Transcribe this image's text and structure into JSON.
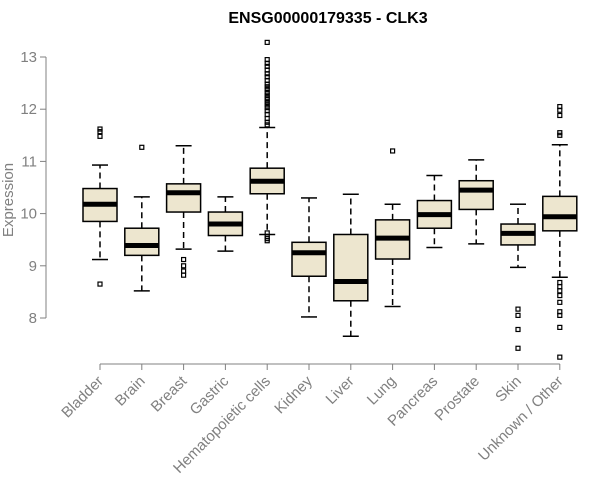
{
  "chart_data": {
    "type": "boxplot",
    "title": "ENSG00000179335 - CLK3",
    "ylabel": "Expression",
    "xlabel": "",
    "ylim": [
      7.0,
      13.4
    ],
    "yticks": [
      8,
      9,
      10,
      11,
      12,
      13
    ],
    "box_color": "#ede6cf",
    "categories": [
      "Bladder",
      "Brain",
      "Breast",
      "Gastric",
      "Hematopoietic cells",
      "Kidney",
      "Liver",
      "Lung",
      "Pancreas",
      "Prostate",
      "Skin",
      "Unknown / Other"
    ],
    "boxes": [
      {
        "name": "Bladder",
        "whisker_low": 9.12,
        "q1": 9.85,
        "median": 10.18,
        "q3": 10.48,
        "whisker_high": 10.93,
        "outliers": [
          8.65,
          11.48,
          11.57,
          11.62
        ]
      },
      {
        "name": "Brain",
        "whisker_low": 8.52,
        "q1": 9.2,
        "median": 9.39,
        "q3": 9.72,
        "whisker_high": 10.32,
        "outliers": [
          11.27
        ]
      },
      {
        "name": "Breast",
        "whisker_low": 9.32,
        "q1": 10.03,
        "median": 10.4,
        "q3": 10.57,
        "whisker_high": 11.3,
        "outliers": [
          8.82,
          8.9,
          9.0,
          9.12
        ]
      },
      {
        "name": "Gastric",
        "whisker_low": 9.28,
        "q1": 9.58,
        "median": 9.8,
        "q3": 10.03,
        "whisker_high": 10.32,
        "outliers": []
      },
      {
        "name": "Hematopoietic cells",
        "whisker_low": 9.6,
        "q1": 10.38,
        "median": 10.62,
        "q3": 10.87,
        "whisker_high": 11.65,
        "outliers": [
          9.48,
          9.52,
          9.56,
          9.63,
          11.7,
          11.75,
          11.82,
          11.9,
          11.97,
          12.03,
          12.08,
          12.13,
          12.18,
          12.22,
          12.27,
          12.32,
          12.38,
          12.43,
          12.48,
          12.55,
          12.62,
          12.68,
          12.75,
          12.82,
          12.88,
          12.95,
          13.28
        ]
      },
      {
        "name": "Kidney",
        "whisker_low": 8.02,
        "q1": 8.8,
        "median": 9.25,
        "q3": 9.45,
        "whisker_high": 10.3,
        "outliers": []
      },
      {
        "name": "Liver",
        "whisker_low": 7.65,
        "q1": 8.33,
        "median": 8.7,
        "q3": 9.6,
        "whisker_high": 10.37,
        "outliers": []
      },
      {
        "name": "Lung",
        "whisker_low": 8.22,
        "q1": 9.13,
        "median": 9.53,
        "q3": 9.88,
        "whisker_high": 10.18,
        "outliers": [
          11.2
        ]
      },
      {
        "name": "Pancreas",
        "whisker_low": 9.35,
        "q1": 9.72,
        "median": 9.98,
        "q3": 10.25,
        "whisker_high": 10.73,
        "outliers": []
      },
      {
        "name": "Prostate",
        "whisker_low": 9.42,
        "q1": 10.08,
        "median": 10.45,
        "q3": 10.63,
        "whisker_high": 11.03,
        "outliers": []
      },
      {
        "name": "Skin",
        "whisker_low": 8.97,
        "q1": 9.4,
        "median": 9.62,
        "q3": 9.8,
        "whisker_high": 10.18,
        "outliers": [
          7.42,
          7.78,
          8.05,
          8.17
        ]
      },
      {
        "name": "Unknown / Other",
        "whisker_low": 8.78,
        "q1": 9.67,
        "median": 9.94,
        "q3": 10.33,
        "whisker_high": 11.32,
        "outliers": [
          7.25,
          7.82,
          8.05,
          8.12,
          8.3,
          8.43,
          8.52,
          8.6,
          8.68,
          11.5,
          11.55,
          11.88,
          11.98,
          12.05
        ]
      }
    ]
  }
}
